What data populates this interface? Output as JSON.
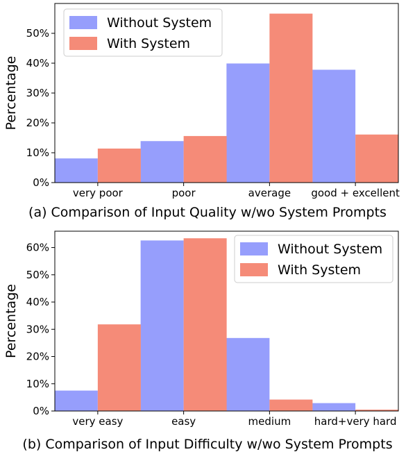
{
  "colors": {
    "without": "#969efc",
    "with": "#f58b78",
    "frame": "#000000"
  },
  "chart_data": [
    {
      "type": "bar",
      "caption": "(a) Comparison of Input Quality w/wo System Prompts",
      "ylabel": "Percentage",
      "ylim": [
        0,
        0.6
      ],
      "yticks": [
        0,
        0.1,
        0.2,
        0.3,
        0.4,
        0.5
      ],
      "ytick_labels": [
        "0%",
        "10%",
        "20%",
        "30%",
        "40%",
        "50%"
      ],
      "categories": [
        "very poor",
        "poor",
        "average",
        "good + excellent"
      ],
      "legend": "top-left",
      "series": [
        {
          "name": "Without System",
          "values": [
            0.081,
            0.139,
            0.399,
            0.378
          ]
        },
        {
          "name": "With System",
          "values": [
            0.114,
            0.156,
            0.566,
            0.161
          ]
        }
      ]
    },
    {
      "type": "bar",
      "caption": "(b) Comparison of Input Difficulty w/wo System Prompts",
      "ylabel": "Percentage",
      "ylim": [
        0,
        0.66
      ],
      "yticks": [
        0,
        0.1,
        0.2,
        0.3,
        0.4,
        0.5,
        0.6
      ],
      "ytick_labels": [
        "0%",
        "10%",
        "20%",
        "30%",
        "40%",
        "50%",
        "60%"
      ],
      "categories": [
        "very easy",
        "easy",
        "medium",
        "hard+very hard"
      ],
      "legend": "top-right",
      "series": [
        {
          "name": "Without System",
          "values": [
            0.075,
            0.626,
            0.268,
            0.029
          ]
        },
        {
          "name": "With System",
          "values": [
            0.318,
            0.634,
            0.042,
            0.005
          ]
        }
      ]
    }
  ]
}
